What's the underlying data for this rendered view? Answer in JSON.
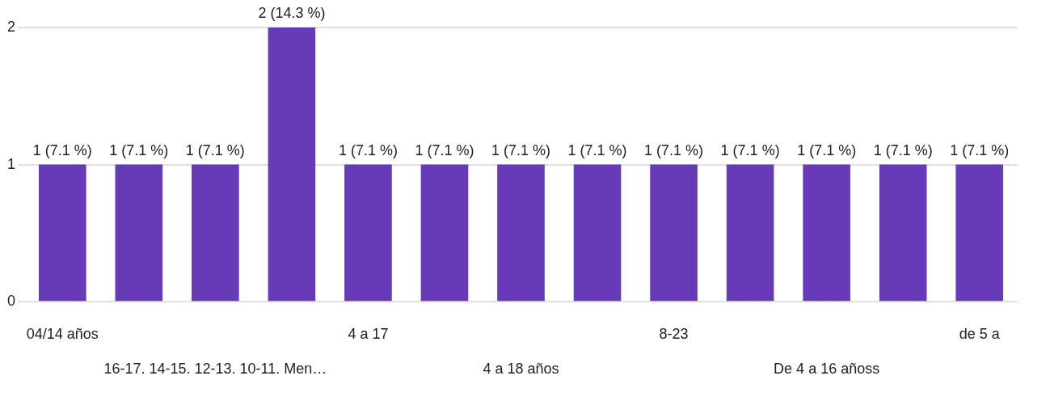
{
  "chart_data": {
    "type": "bar",
    "categories": [
      "04/14 años",
      null,
      "16-17. 14-15. 12-13. 10-11. Men…",
      null,
      "4 a 17",
      null,
      "4 a 18 años",
      null,
      "8-23",
      null,
      "De 4 a 16 añoss",
      null,
      "de 5 a"
    ],
    "values": [
      1,
      1,
      1,
      2,
      1,
      1,
      1,
      1,
      1,
      1,
      1,
      1,
      1
    ],
    "value_labels": [
      "1 (7.1 %)",
      "1 (7.1 %)",
      "1 (7.1 %)",
      "2 (14.3 %)",
      "1 (7.1 %)",
      "1 (7.1 %)",
      "1 (7.1 %)",
      "1 (7.1 %)",
      "1 (7.1 %)",
      "1 (7.1 %)",
      "1 (7.1 %)",
      "1 (7.1 %)",
      "1 (7.1 %)"
    ],
    "color": "#673ab7",
    "ylim": [
      0,
      2
    ],
    "yticks": [
      0,
      1,
      2
    ],
    "grid": "y",
    "legend": false
  }
}
